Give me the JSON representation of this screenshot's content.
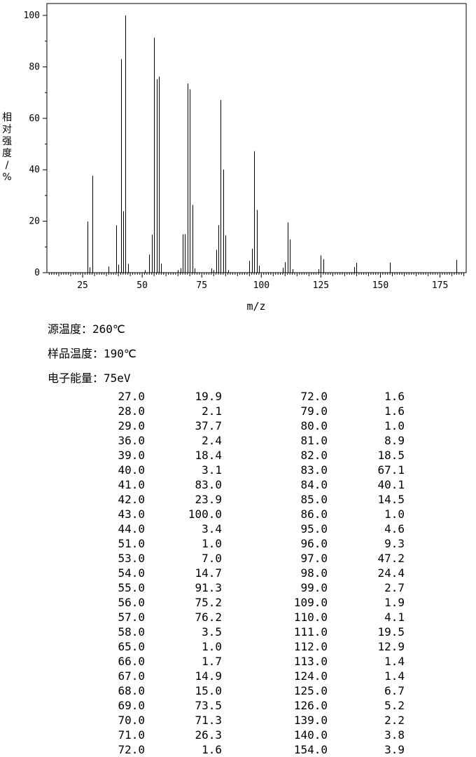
{
  "chart_data": {
    "type": "bar",
    "title": "",
    "xlabel": "m/z",
    "ylabel": "相对强度/%",
    "xlim": [
      10,
      186
    ],
    "ylim": [
      0,
      100
    ],
    "x_ticks": [
      "25",
      "50",
      "75",
      "100",
      "125",
      "150",
      "175"
    ],
    "y_ticks": [
      "0",
      "20",
      "40",
      "60",
      "80",
      "100"
    ],
    "peaks": [
      [
        27.0,
        19.9
      ],
      [
        28.0,
        2.1
      ],
      [
        29.0,
        37.7
      ],
      [
        36.0,
        2.4
      ],
      [
        39.0,
        18.4
      ],
      [
        40.0,
        3.1
      ],
      [
        41.0,
        83.0
      ],
      [
        42.0,
        23.9
      ],
      [
        43.0,
        100.0
      ],
      [
        44.0,
        3.4
      ],
      [
        51.0,
        1.0
      ],
      [
        53.0,
        7.0
      ],
      [
        54.0,
        14.7
      ],
      [
        55.0,
        91.3
      ],
      [
        56.0,
        75.2
      ],
      [
        57.0,
        76.2
      ],
      [
        58.0,
        3.5
      ],
      [
        65.0,
        1.0
      ],
      [
        66.0,
        1.7
      ],
      [
        67.0,
        14.9
      ],
      [
        68.0,
        15.0
      ],
      [
        69.0,
        73.5
      ],
      [
        70.0,
        71.3
      ],
      [
        71.0,
        26.3
      ],
      [
        72.0,
        1.6
      ],
      [
        79.0,
        1.6
      ],
      [
        80.0,
        1.0
      ],
      [
        81.0,
        8.9
      ],
      [
        82.0,
        18.5
      ],
      [
        83.0,
        67.1
      ],
      [
        84.0,
        40.1
      ],
      [
        85.0,
        14.5
      ],
      [
        86.0,
        1.0
      ],
      [
        95.0,
        4.6
      ],
      [
        96.0,
        9.3
      ],
      [
        97.0,
        47.2
      ],
      [
        98.0,
        24.4
      ],
      [
        99.0,
        2.7
      ],
      [
        109.0,
        1.9
      ],
      [
        110.0,
        4.1
      ],
      [
        111.0,
        19.5
      ],
      [
        112.0,
        12.9
      ],
      [
        113.0,
        1.4
      ],
      [
        124.0,
        1.4
      ],
      [
        125.0,
        6.7
      ],
      [
        126.0,
        5.2
      ],
      [
        139.0,
        2.2
      ],
      [
        140.0,
        3.8
      ],
      [
        154.0,
        3.9
      ],
      [
        182.0,
        5.0
      ]
    ]
  },
  "conditions": {
    "source_temp_label": "源温度：",
    "source_temp_value": "260℃",
    "sample_temp_label": "样品温度：",
    "sample_temp_value": "190℃",
    "electron_energy_label": "电子能量：",
    "electron_energy_value": "75eV"
  },
  "table": {
    "rows": [
      [
        "27.0",
        "19.9",
        "72.0",
        "1.6"
      ],
      [
        "28.0",
        "2.1",
        "79.0",
        "1.6"
      ],
      [
        "29.0",
        "37.7",
        "80.0",
        "1.0"
      ],
      [
        "36.0",
        "2.4",
        "81.0",
        "8.9"
      ],
      [
        "39.0",
        "18.4",
        "82.0",
        "18.5"
      ],
      [
        "40.0",
        "3.1",
        "83.0",
        "67.1"
      ],
      [
        "41.0",
        "83.0",
        "84.0",
        "40.1"
      ],
      [
        "42.0",
        "23.9",
        "85.0",
        "14.5"
      ],
      [
        "43.0",
        "100.0",
        "86.0",
        "1.0"
      ],
      [
        "44.0",
        "3.4",
        "95.0",
        "4.6"
      ],
      [
        "51.0",
        "1.0",
        "96.0",
        "9.3"
      ],
      [
        "53.0",
        "7.0",
        "97.0",
        "47.2"
      ],
      [
        "54.0",
        "14.7",
        "98.0",
        "24.4"
      ],
      [
        "55.0",
        "91.3",
        "99.0",
        "2.7"
      ],
      [
        "56.0",
        "75.2",
        "109.0",
        "1.9"
      ],
      [
        "57.0",
        "76.2",
        "110.0",
        "4.1"
      ],
      [
        "58.0",
        "3.5",
        "111.0",
        "19.5"
      ],
      [
        "65.0",
        "1.0",
        "112.0",
        "12.9"
      ],
      [
        "66.0",
        "1.7",
        "113.0",
        "1.4"
      ],
      [
        "67.0",
        "14.9",
        "124.0",
        "1.4"
      ],
      [
        "68.0",
        "15.0",
        "125.0",
        "6.7"
      ],
      [
        "69.0",
        "73.5",
        "126.0",
        "5.2"
      ],
      [
        "70.0",
        "71.3",
        "139.0",
        "2.2"
      ],
      [
        "71.0",
        "26.3",
        "140.0",
        "3.8"
      ],
      [
        "72.0",
        "1.6",
        "154.0",
        "3.9"
      ]
    ]
  }
}
